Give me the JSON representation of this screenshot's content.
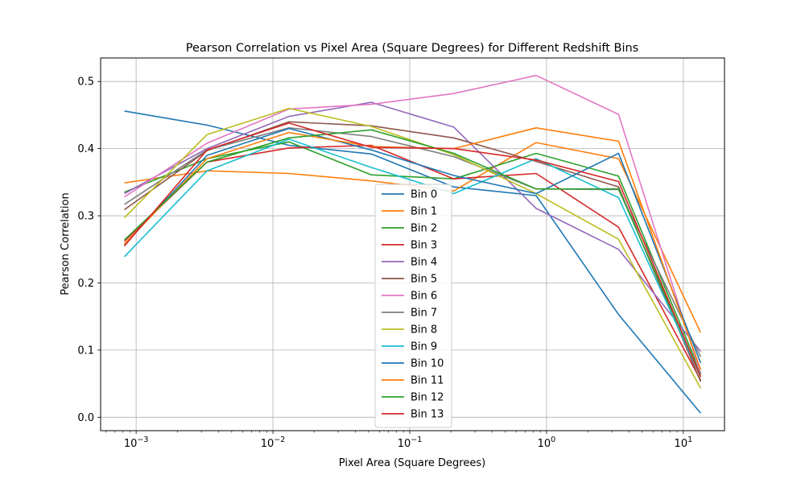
{
  "chart_data": {
    "type": "line",
    "title": "Pearson Correlation vs Pixel Area (Square Degrees) for Different Redshift Bins",
    "xlabel": "Pixel Area (Square Degrees)",
    "ylabel": "Pearson Correlation",
    "xscale": "log",
    "xlim": [
      0.00055,
      20
    ],
    "ylim": [
      -0.02,
      0.535
    ],
    "grid": true,
    "legend_position": "center-bottom",
    "x_ticks": [
      {
        "value": 0.001,
        "label": "10^-3"
      },
      {
        "value": 0.01,
        "label": "10^-2"
      },
      {
        "value": 0.1,
        "label": "10^-1"
      },
      {
        "value": 1,
        "label": "10^0"
      },
      {
        "value": 10,
        "label": "10^1"
      }
    ],
    "y_ticks": [
      0.0,
      0.1,
      0.2,
      0.3,
      0.4,
      0.5
    ],
    "y_tick_labels": [
      "0.0",
      "0.1",
      "0.2",
      "0.3",
      "0.4",
      "0.5"
    ],
    "x": [
      0.00082,
      0.0033,
      0.0131,
      0.0524,
      0.21,
      0.839,
      3.36,
      13.4
    ],
    "series": [
      {
        "name": "Bin 0",
        "color": "#1f77b4",
        "values": [
          0.456,
          0.435,
          0.405,
          0.392,
          0.343,
          0.33,
          0.153,
          0.006
        ]
      },
      {
        "name": "Bin 1",
        "color": "#ff7f0e",
        "values": [
          0.349,
          0.367,
          0.363,
          0.352,
          0.337,
          0.409,
          0.385,
          0.126
        ]
      },
      {
        "name": "Bin 2",
        "color": "#2ca02c",
        "values": [
          0.335,
          0.385,
          0.41,
          0.361,
          0.355,
          0.393,
          0.359,
          0.066
        ]
      },
      {
        "name": "Bin 3",
        "color": "#d62728",
        "values": [
          0.262,
          0.38,
          0.401,
          0.405,
          0.355,
          0.363,
          0.283,
          0.055
        ]
      },
      {
        "name": "Bin 4",
        "color": "#9467bd",
        "values": [
          0.333,
          0.4,
          0.448,
          0.469,
          0.432,
          0.311,
          0.25,
          0.098
        ]
      },
      {
        "name": "Bin 5",
        "color": "#8c564b",
        "values": [
          0.309,
          0.397,
          0.44,
          0.434,
          0.416,
          0.381,
          0.343,
          0.053
        ]
      },
      {
        "name": "Bin 6",
        "color": "#e377c2",
        "values": [
          0.328,
          0.408,
          0.459,
          0.466,
          0.482,
          0.509,
          0.451,
          0.064
        ]
      },
      {
        "name": "Bin 7",
        "color": "#7f7f7f",
        "values": [
          0.317,
          0.398,
          0.431,
          0.418,
          0.388,
          0.34,
          0.339,
          0.09
        ]
      },
      {
        "name": "Bin 8",
        "color": "#bcbd22",
        "values": [
          0.297,
          0.421,
          0.46,
          0.433,
          0.391,
          0.333,
          0.265,
          0.043
        ]
      },
      {
        "name": "Bin 9",
        "color": "#17becf",
        "values": [
          0.239,
          0.367,
          0.414,
          0.372,
          0.333,
          0.385,
          0.327,
          0.06
        ]
      },
      {
        "name": "Bin 10",
        "color": "#1f77b4",
        "values": [
          0.257,
          0.39,
          0.43,
          0.398,
          0.36,
          0.333,
          0.393,
          0.081
        ]
      },
      {
        "name": "Bin 11",
        "color": "#ff7f0e",
        "values": [
          0.258,
          0.385,
          0.424,
          0.403,
          0.4,
          0.431,
          0.411,
          0.071
        ]
      },
      {
        "name": "Bin 12",
        "color": "#2ca02c",
        "values": [
          0.264,
          0.38,
          0.416,
          0.428,
          0.393,
          0.34,
          0.34,
          0.062
        ]
      },
      {
        "name": "Bin 13",
        "color": "#d62728",
        "values": [
          0.255,
          0.398,
          0.438,
          0.402,
          0.4,
          0.383,
          0.351,
          0.06
        ]
      }
    ]
  }
}
